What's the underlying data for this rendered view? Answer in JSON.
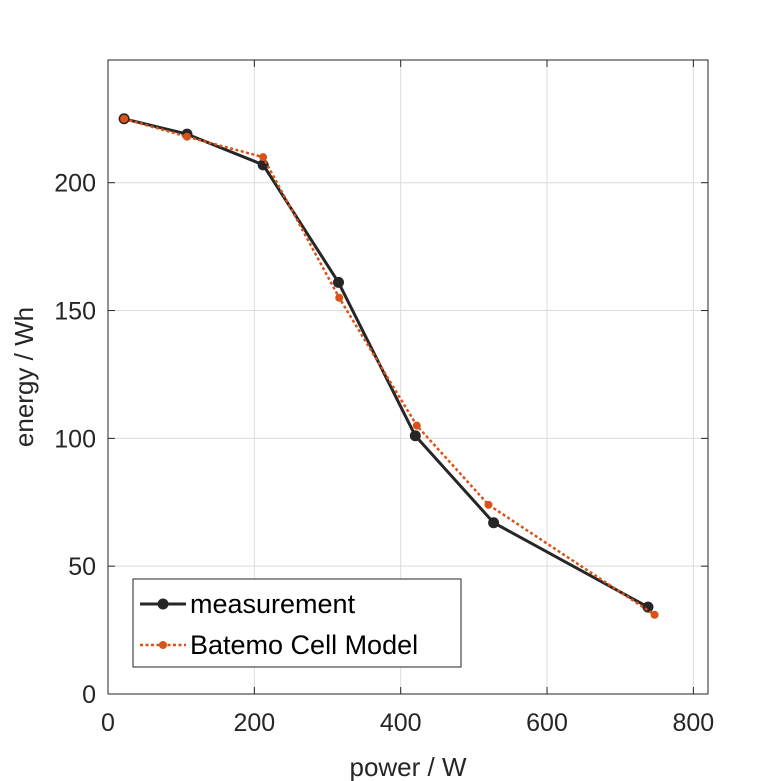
{
  "chart_data": {
    "type": "line",
    "title": "",
    "xlabel": "power / W",
    "ylabel": "energy / Wh",
    "xlim": [
      0,
      820
    ],
    "ylim": [
      0,
      248
    ],
    "xticks": [
      0,
      200,
      400,
      600,
      800
    ],
    "yticks": [
      0,
      50,
      100,
      150,
      200
    ],
    "grid": true,
    "legend_position": "bottom-left",
    "series": [
      {
        "name": "measurement",
        "color": "#262626",
        "line_style": "solid",
        "marker": "circle",
        "x": [
          22,
          108,
          212,
          315,
          420,
          527,
          738
        ],
        "y": [
          225,
          219,
          207,
          161,
          101,
          67,
          34
        ]
      },
      {
        "name": "Batemo Cell Model",
        "color": "#d95319",
        "line_style": "dotted",
        "marker": "circle",
        "x": [
          22,
          108,
          212,
          316,
          422,
          520,
          747
        ],
        "y": [
          225,
          218,
          210,
          155,
          105,
          74,
          31
        ]
      }
    ]
  }
}
